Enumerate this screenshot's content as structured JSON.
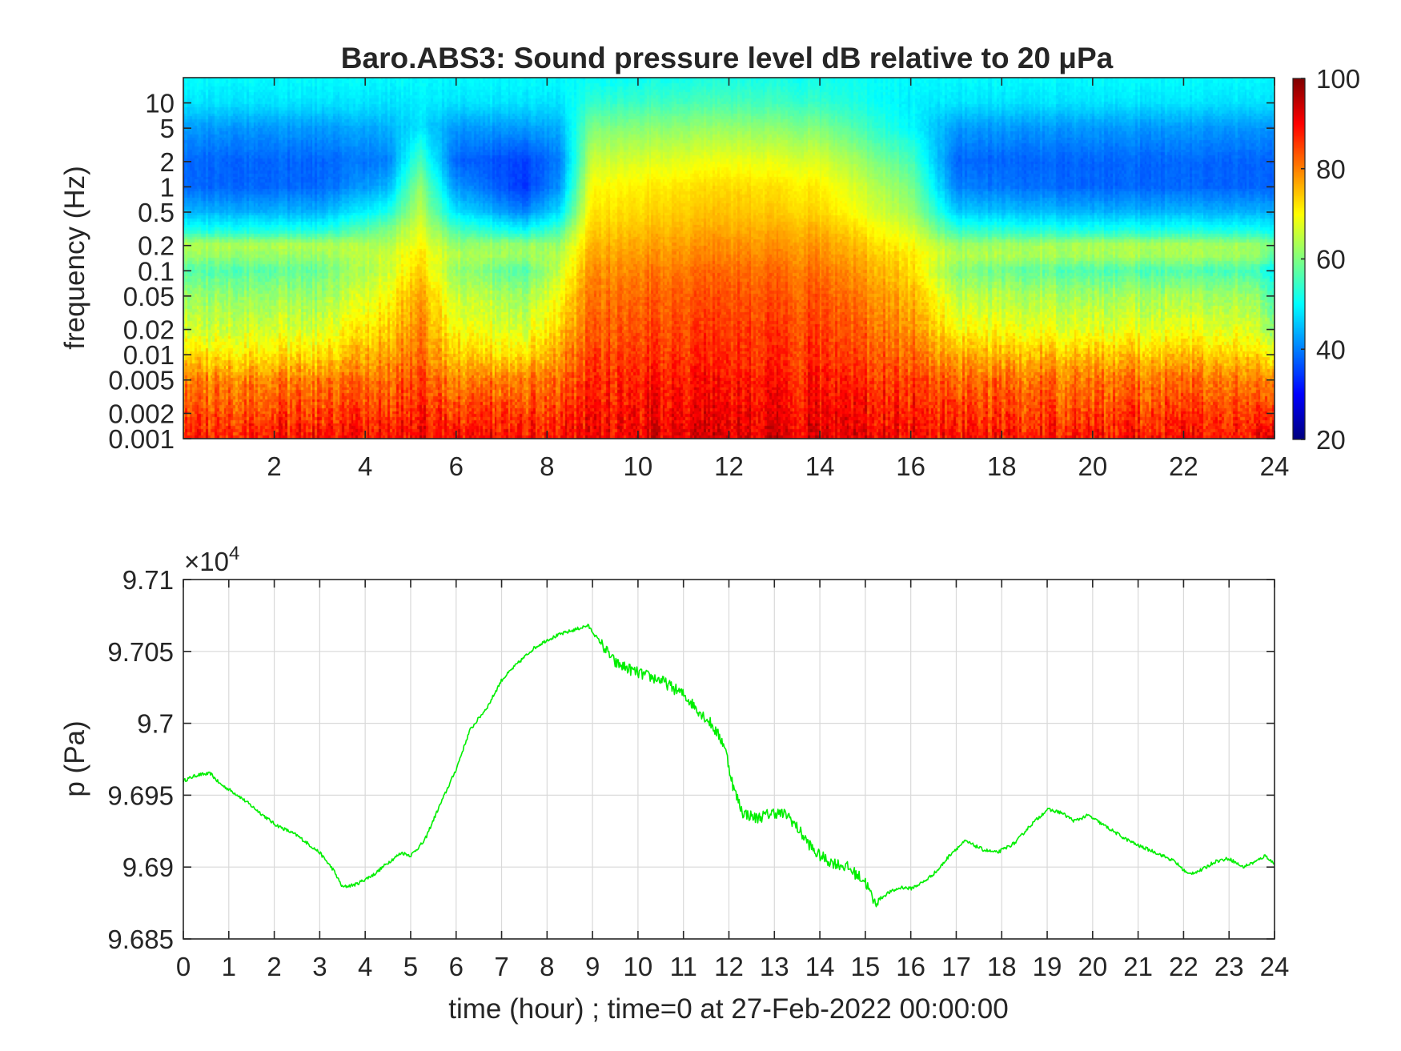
{
  "chart_data": [
    {
      "type": "heatmap",
      "title": "Baro.ABS3: Sound pressure level dB relative to 20 μPa",
      "xlabel": "",
      "ylabel": "frequency (Hz)",
      "y_scale": "log",
      "xlim": [
        0,
        24
      ],
      "ylim": [
        0.001,
        20
      ],
      "xticks": [
        "2",
        "4",
        "6",
        "8",
        "10",
        "12",
        "14",
        "16",
        "18",
        "20",
        "22",
        "24"
      ],
      "xtick_values": [
        2,
        4,
        6,
        8,
        10,
        12,
        14,
        16,
        18,
        20,
        22,
        24
      ],
      "yticks": [
        "10",
        "5",
        "2",
        "1",
        "0.5",
        "0.2",
        "0.1",
        "0.05",
        "0.02",
        "0.01",
        "0.005",
        "0.002",
        "0.001"
      ],
      "ytick_values": [
        10,
        5,
        2,
        1,
        0.5,
        0.2,
        0.1,
        0.05,
        0.02,
        0.01,
        0.005,
        0.002,
        0.001
      ],
      "colorbar": {
        "colormap": "jet",
        "clim": [
          20,
          100
        ],
        "ticks": [
          "100",
          "80",
          "60",
          "40",
          "20"
        ],
        "tick_values": [
          100,
          80,
          60,
          40,
          20
        ]
      },
      "profile_freqs": [
        0.001,
        0.002,
        0.005,
        0.01,
        0.02,
        0.05,
        0.1,
        0.15,
        0.2,
        0.3,
        0.5,
        1,
        2,
        5,
        10,
        20
      ],
      "spectra": [
        {
          "time": 0.0,
          "db": [
            88,
            84,
            80,
            72,
            66,
            62,
            56,
            62,
            64,
            52,
            44,
            38,
            38,
            42,
            48,
            50
          ]
        },
        {
          "time": 3.0,
          "db": [
            89,
            85,
            80,
            72,
            67,
            62,
            58,
            62,
            64,
            52,
            44,
            38,
            38,
            42,
            48,
            50
          ]
        },
        {
          "time": 4.5,
          "db": [
            90,
            86,
            82,
            78,
            74,
            70,
            66,
            66,
            64,
            60,
            52,
            44,
            40,
            44,
            48,
            50
          ]
        },
        {
          "time": 5.2,
          "db": [
            91,
            88,
            85,
            82,
            80,
            78,
            74,
            72,
            70,
            68,
            65,
            62,
            56,
            48,
            49,
            50
          ]
        },
        {
          "time": 6.0,
          "db": [
            90,
            86,
            80,
            74,
            70,
            66,
            62,
            64,
            62,
            56,
            48,
            42,
            38,
            42,
            48,
            50
          ]
        },
        {
          "time": 7.5,
          "db": [
            89,
            85,
            80,
            72,
            66,
            62,
            56,
            62,
            62,
            50,
            40,
            34,
            35,
            42,
            48,
            50
          ]
        },
        {
          "time": 8.3,
          "db": [
            89,
            86,
            82,
            78,
            74,
            70,
            66,
            64,
            62,
            56,
            48,
            42,
            40,
            44,
            48,
            50
          ]
        },
        {
          "time": 9.0,
          "db": [
            91,
            89,
            87,
            85,
            83,
            81,
            79,
            77,
            76,
            74,
            72,
            70,
            66,
            60,
            54,
            50
          ]
        },
        {
          "time": 12.0,
          "db": [
            93,
            91,
            89,
            87,
            86,
            84,
            82,
            80,
            79,
            77,
            75,
            73,
            69,
            62,
            56,
            52
          ]
        },
        {
          "time": 14.0,
          "db": [
            92,
            90,
            88,
            86,
            85,
            83,
            81,
            79,
            78,
            76,
            73,
            71,
            67,
            60,
            54,
            51
          ]
        },
        {
          "time": 16.0,
          "db": [
            90,
            88,
            85,
            82,
            79,
            76,
            73,
            72,
            70,
            67,
            63,
            60,
            56,
            50,
            49,
            50
          ]
        },
        {
          "time": 17.0,
          "db": [
            89,
            86,
            82,
            76,
            70,
            65,
            60,
            64,
            62,
            54,
            46,
            40,
            38,
            42,
            48,
            50
          ]
        },
        {
          "time": 20.0,
          "db": [
            89,
            85,
            81,
            75,
            68,
            63,
            56,
            63,
            64,
            52,
            44,
            38,
            38,
            42,
            48,
            50
          ]
        },
        {
          "time": 23.5,
          "db": [
            89,
            86,
            81,
            74,
            68,
            63,
            56,
            63,
            63,
            52,
            44,
            38,
            38,
            42,
            48,
            50
          ]
        },
        {
          "time": 24.0,
          "db": [
            96,
            88,
            80,
            70,
            62,
            56,
            50,
            58,
            60,
            50,
            44,
            38,
            38,
            42,
            48,
            50
          ]
        }
      ]
    },
    {
      "type": "line",
      "title": "",
      "xlabel": "time (hour) ; time=0 at 27-Feb-2022 00:00:00",
      "ylabel": "p (Pa)",
      "exponent_label": "×10",
      "exponent_power": "4",
      "xlim": [
        0,
        24
      ],
      "ylim": [
        96850,
        97100
      ],
      "xticks": [
        "0",
        "1",
        "2",
        "3",
        "4",
        "5",
        "6",
        "7",
        "8",
        "9",
        "10",
        "11",
        "12",
        "13",
        "14",
        "15",
        "16",
        "17",
        "18",
        "19",
        "20",
        "21",
        "22",
        "23",
        "24"
      ],
      "xtick_values": [
        0,
        1,
        2,
        3,
        4,
        5,
        6,
        7,
        8,
        9,
        10,
        11,
        12,
        13,
        14,
        15,
        16,
        17,
        18,
        19,
        20,
        21,
        22,
        23,
        24
      ],
      "yticks": [
        "9.71",
        "9.705",
        "9.7",
        "9.695",
        "9.69",
        "9.685"
      ],
      "ytick_values": [
        97100,
        97050,
        97000,
        96950,
        96900,
        96850
      ],
      "grid": true,
      "color": "#00ee00",
      "x": [
        0,
        0.3,
        0.6,
        0.8,
        1.2,
        1.6,
        2.0,
        2.5,
        3.0,
        3.3,
        3.5,
        3.8,
        4.2,
        4.5,
        4.8,
        5.0,
        5.3,
        5.6,
        6.0,
        6.3,
        6.7,
        7.0,
        7.3,
        7.7,
        8.0,
        8.3,
        8.6,
        8.9,
        9.2,
        9.5,
        10.0,
        10.5,
        11.0,
        11.3,
        11.6,
        11.9,
        12.1,
        12.3,
        12.6,
        13.0,
        13.3,
        13.6,
        13.9,
        14.2,
        14.6,
        15.0,
        15.2,
        15.5,
        15.8,
        16.0,
        16.3,
        16.6,
        16.9,
        17.2,
        17.6,
        17.9,
        18.3,
        18.6,
        19.0,
        19.3,
        19.6,
        19.9,
        20.3,
        20.7,
        21.0,
        21.4,
        21.8,
        22.1,
        22.4,
        22.7,
        23.0,
        23.3,
        23.6,
        23.8,
        24.0
      ],
      "y": [
        96960,
        96964,
        96965,
        96958,
        96950,
        96940,
        96930,
        96922,
        96910,
        96898,
        96886,
        96888,
        96895,
        96903,
        96910,
        96908,
        96918,
        96940,
        96968,
        96995,
        97012,
        97030,
        97040,
        97052,
        97058,
        97062,
        97065,
        97068,
        97055,
        97042,
        97035,
        97030,
        97020,
        97010,
        97000,
        96985,
        96955,
        96938,
        96934,
        96938,
        96936,
        96923,
        96910,
        96904,
        96900,
        96890,
        96875,
        96882,
        96886,
        96885,
        96890,
        96898,
        96910,
        96918,
        96912,
        96910,
        96917,
        96928,
        96940,
        96938,
        96932,
        96936,
        96928,
        96920,
        96915,
        96910,
        96904,
        96895,
        96898,
        96904,
        96906,
        96900,
        96904,
        96908,
        96902
      ]
    }
  ]
}
